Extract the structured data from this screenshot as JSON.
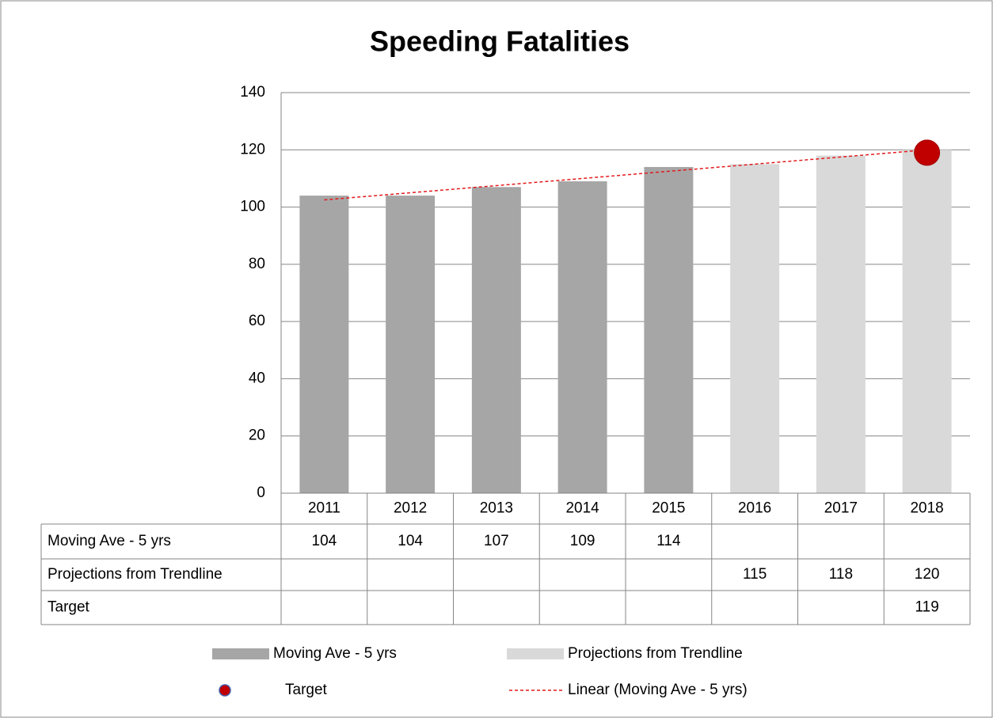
{
  "chart_data": {
    "type": "bar",
    "title": "Speeding Fatalities",
    "categories": [
      "2011",
      "2012",
      "2013",
      "2014",
      "2015",
      "2016",
      "2017",
      "2018"
    ],
    "series": [
      {
        "name": "Moving Ave - 5 yrs",
        "color": "#a6a6a6",
        "type": "bar",
        "values": [
          104,
          104,
          107,
          109,
          114,
          null,
          null,
          null
        ]
      },
      {
        "name": "Projections from Trendline",
        "color": "#d9d9d9",
        "type": "bar",
        "values": [
          null,
          null,
          null,
          null,
          null,
          115,
          118,
          120
        ]
      },
      {
        "name": "Target",
        "color": "#c00000",
        "type": "point",
        "values": [
          null,
          null,
          null,
          null,
          null,
          null,
          null,
          119
        ]
      }
    ],
    "trendline": {
      "name": "Linear (Moving Ave - 5 yrs)",
      "color": "#e31a1c",
      "values": [
        102.5,
        105,
        107.5,
        110,
        112.5,
        115,
        117.5,
        120
      ]
    },
    "ylim": [
      0,
      140
    ],
    "yticks": [
      0,
      20,
      40,
      60,
      80,
      100,
      120,
      140
    ],
    "grid": true
  }
}
